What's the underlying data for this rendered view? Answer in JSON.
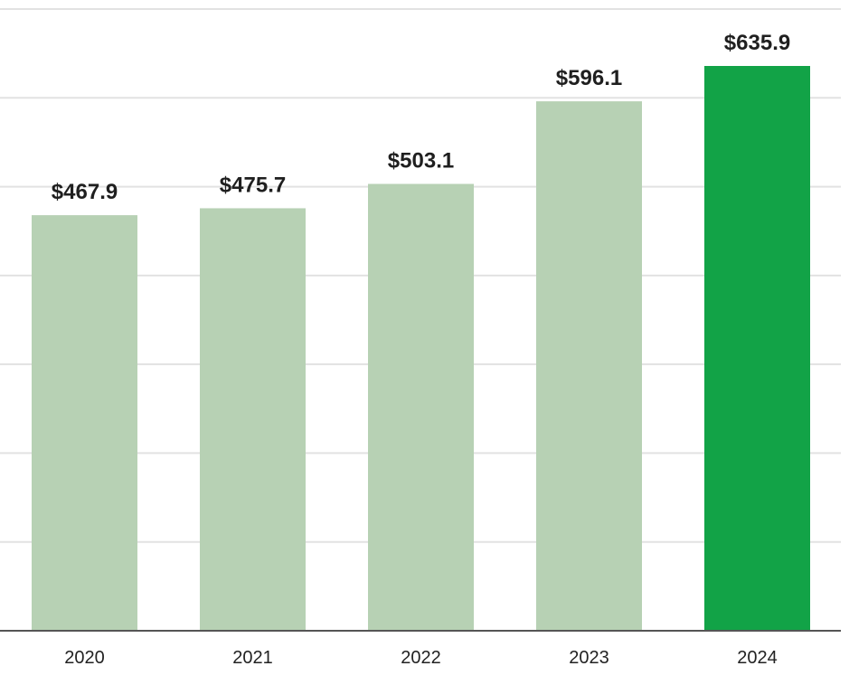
{
  "chart_data": {
    "type": "bar",
    "title": "",
    "xlabel": "",
    "ylabel": "",
    "categories": [
      "2020",
      "2021",
      "2022",
      "2023",
      "2024"
    ],
    "values": [
      467.9,
      475.7,
      503.1,
      596.1,
      635.9
    ],
    "value_labels": [
      "$467.9",
      "$475.7",
      "$503.1",
      "$596.1",
      "$635.9"
    ],
    "ylim": [
      0,
      700
    ],
    "grid_step": 100,
    "grid": true,
    "highlight_index": 4,
    "colors": {
      "bar": "#b7d1b4",
      "highlight": "#12a347"
    }
  }
}
